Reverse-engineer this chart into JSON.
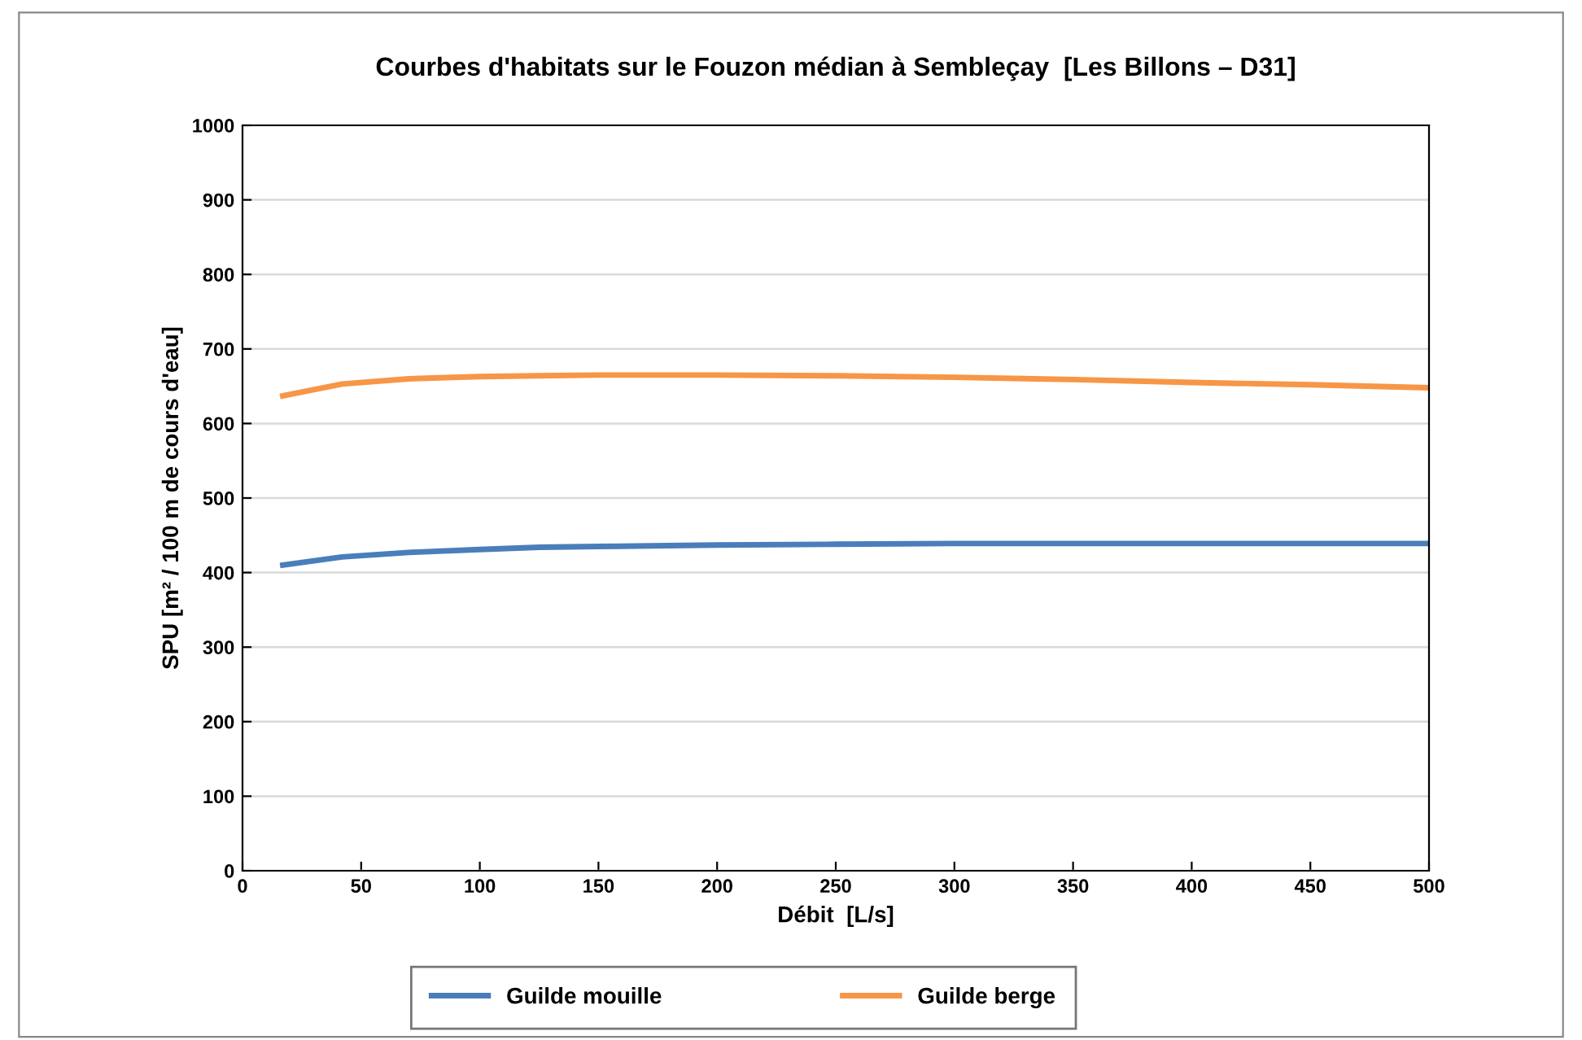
{
  "chart_data": {
    "type": "line",
    "title": "Courbes d'habitats sur le Fouzon médian à Sembleçay  [Les Billons – D31]",
    "xlabel": "Débit  [L/s]",
    "ylabel": "SPU [m² / 100 m de cours d'eau]",
    "x": [
      17,
      42,
      70,
      100,
      125,
      150,
      200,
      250,
      300,
      350,
      400,
      450,
      500
    ],
    "series": [
      {
        "name": "Guilde mouille",
        "color": "#4a7ebb",
        "values": [
          410,
          421,
          427,
          431,
          434,
          435,
          437,
          438,
          439,
          439,
          439,
          439,
          439
        ]
      },
      {
        "name": "Guilde berge",
        "color": "#f79646",
        "values": [
          637,
          653,
          660,
          663,
          664,
          665,
          665,
          664,
          662,
          659,
          655,
          652,
          648
        ]
      }
    ],
    "xlim": [
      0,
      500
    ],
    "xticks": [
      0,
      50,
      100,
      150,
      200,
      250,
      300,
      350,
      400,
      450,
      500
    ],
    "ylim": [
      0,
      1000
    ],
    "yticks": [
      0,
      100,
      200,
      300,
      400,
      500,
      600,
      700,
      800,
      900,
      1000
    ],
    "grid": "y",
    "legend": "bottom",
    "marker": "none",
    "line_style": "solid"
  }
}
